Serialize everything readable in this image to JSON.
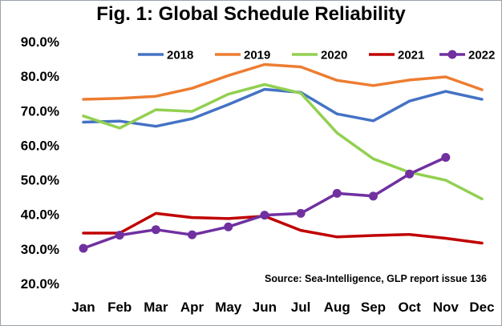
{
  "chart_data": {
    "type": "line",
    "title": "Fig. 1: Global Schedule Reliability",
    "categories": [
      "Jan",
      "Feb",
      "Mar",
      "Apr",
      "May",
      "Jun",
      "Jul",
      "Aug",
      "Sep",
      "Oct",
      "Nov",
      "Dec"
    ],
    "y_tick_labels": [
      "20.0%",
      "30.0%",
      "40.0%",
      "50.0%",
      "60.0%",
      "70.0%",
      "80.0%",
      "90.0%"
    ],
    "ylim": [
      20,
      90
    ],
    "grid": false,
    "legend_position": "top",
    "source": "Source: Sea-Intelligence, GLP report issue 136",
    "series": [
      {
        "name": "2018",
        "color": "#4472c4",
        "marker": "none",
        "values": [
          66.7,
          67.0,
          65.5,
          67.7,
          71.8,
          76.2,
          75.3,
          69.1,
          67.1,
          72.8,
          75.6,
          73.3
        ]
      },
      {
        "name": "2019",
        "color": "#ed7d31",
        "marker": "none",
        "values": [
          73.3,
          73.6,
          74.2,
          76.5,
          80.2,
          83.4,
          82.7,
          78.8,
          77.3,
          78.9,
          79.8,
          76.1
        ]
      },
      {
        "name": "2020",
        "color": "#92d050",
        "marker": "none",
        "values": [
          68.5,
          65.0,
          70.3,
          69.8,
          74.8,
          77.6,
          75.1,
          63.6,
          56.1,
          52.2,
          49.9,
          44.5
        ]
      },
      {
        "name": "2021",
        "color": "#c00000",
        "marker": "none",
        "values": [
          34.6,
          34.6,
          40.3,
          39.1,
          38.8,
          39.5,
          35.4,
          33.5,
          33.9,
          34.2,
          33.1,
          31.7
        ]
      },
      {
        "name": "2022",
        "color": "#7030a0",
        "marker": "circle",
        "values": [
          30.2,
          34.0,
          35.6,
          34.1,
          36.4,
          39.8,
          40.3,
          46.1,
          45.3,
          51.7,
          56.5,
          null
        ]
      }
    ]
  }
}
